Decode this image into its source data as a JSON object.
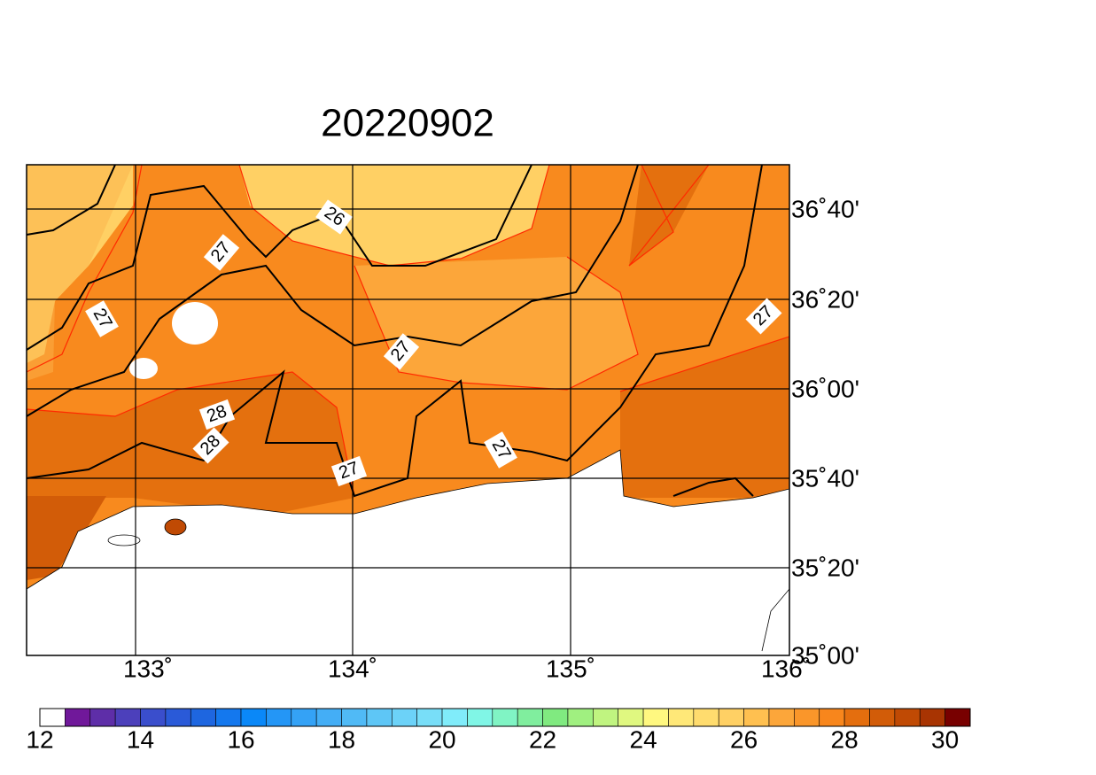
{
  "title": "20220902",
  "longitude_labels": [
    "133˚",
    "134˚",
    "135˚",
    "136˚"
  ],
  "latitude_labels": [
    "36˚40'",
    "36˚20'",
    "36˚00'",
    "35˚40'",
    "35˚20'",
    "35˚00'"
  ],
  "contour_labels": [
    "26",
    "27",
    "27",
    "27",
    "28",
    "28",
    "27",
    "27",
    "27"
  ],
  "colorbar": {
    "lim": [
      12,
      30.5
    ],
    "ticks": [
      12,
      14,
      16,
      18,
      20,
      22,
      24,
      26,
      28,
      30
    ],
    "colors": [
      "#ffffff",
      "#70189a",
      "#5e2ea8",
      "#4c40bb",
      "#3a4ecc",
      "#2a5ad8",
      "#1e66e0",
      "#1478ee",
      "#0a88f8",
      "#2496f6",
      "#34a2f6",
      "#44aef6",
      "#50baf6",
      "#5ec6f6",
      "#6cd2f8",
      "#78def8",
      "#80ecfa",
      "#80f6e6",
      "#80f4c4",
      "#80ee9e",
      "#80ea80",
      "#a0f080",
      "#c0f480",
      "#e0f880",
      "#fff880",
      "#ffe878",
      "#ffdc6e",
      "#ffd064",
      "#ffc050",
      "#fca63a",
      "#fa962a",
      "#f8861c",
      "#e46e0e",
      "#d25c08",
      "#c04a04",
      "#a83402",
      "#780000"
    ]
  }
}
